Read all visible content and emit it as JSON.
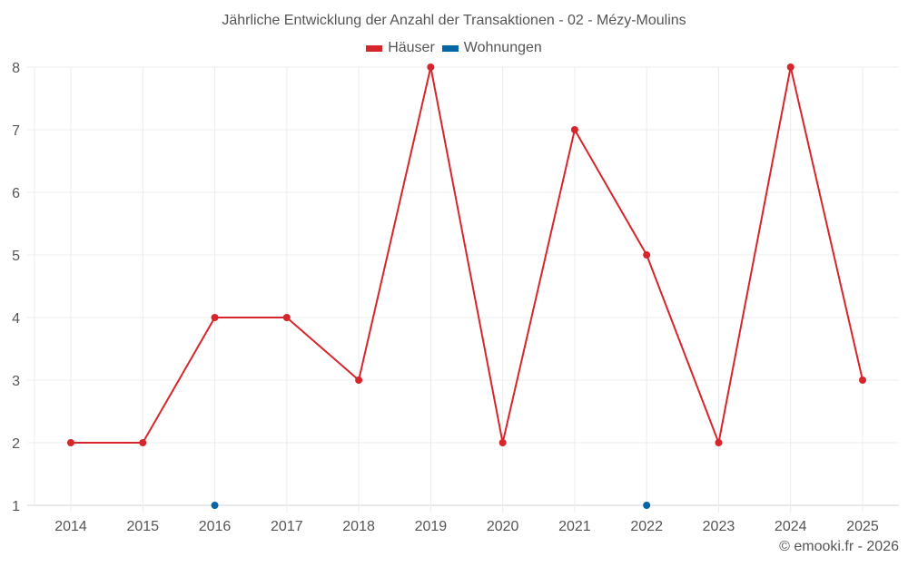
{
  "chart_data": {
    "type": "line",
    "title": "Jährliche Entwicklung der Anzahl der Transaktionen - 02 - Mézy-Moulins",
    "xlabel": "",
    "ylabel": "",
    "categories": [
      "2014",
      "2015",
      "2016",
      "2017",
      "2018",
      "2019",
      "2020",
      "2021",
      "2022",
      "2023",
      "2024",
      "2025"
    ],
    "yticks": [
      1,
      2,
      3,
      4,
      5,
      6,
      7,
      8
    ],
    "ylim": [
      1,
      8
    ],
    "grid": true,
    "legend_position": "top",
    "series": [
      {
        "name": "Häuser",
        "color": "#d7262b",
        "values": [
          2,
          2,
          4,
          4,
          3,
          8,
          2,
          7,
          5,
          2,
          8,
          3
        ],
        "connect": true
      },
      {
        "name": "Wohnungen",
        "color": "#0066a8",
        "values": [
          null,
          null,
          1,
          null,
          null,
          null,
          null,
          null,
          1,
          null,
          null,
          null
        ],
        "connect": false
      }
    ]
  },
  "legend": [
    {
      "label": "Häuser",
      "color": "#d7262b"
    },
    {
      "label": "Wohnungen",
      "color": "#0066a8"
    }
  ],
  "credit": "© emooki.fr - 2026"
}
